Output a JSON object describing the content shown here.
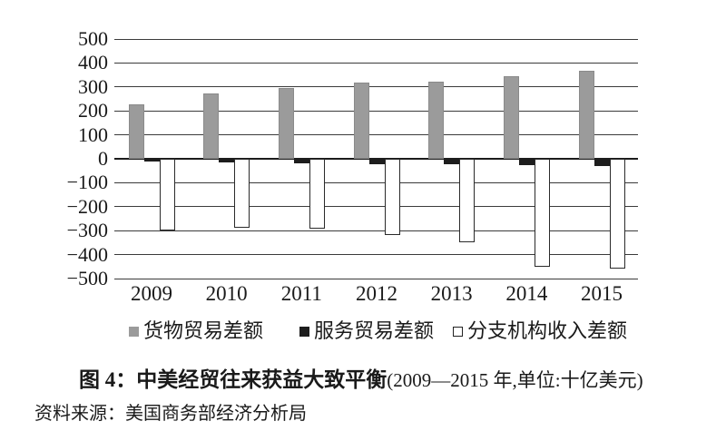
{
  "figure": {
    "caption": {
      "prefix": "图 4：中美经贸往来获益大致平衡",
      "paren": "(2009—2015 年,单位:十亿美元)"
    },
    "source": "资料来源：美国商务部经济分析局"
  },
  "chart_data": {
    "type": "bar",
    "title": "图 4：中美经贸往来获益大致平衡",
    "subtitle": "(2009—2015 年,单位:十亿美元)",
    "unit": "十亿美元",
    "categories": [
      "2009",
      "2010",
      "2011",
      "2012",
      "2013",
      "2014",
      "2015"
    ],
    "series": [
      {
        "key": "goods",
        "name": "货物贸易差额",
        "color": "#9b9b9b",
        "values": [
          228,
          273,
          296,
          317,
          322,
          344,
          367
        ]
      },
      {
        "key": "services",
        "name": "服务贸易差额",
        "color": "#1d1d1d",
        "values": [
          -10,
          -15,
          -19,
          -21,
          -24,
          -27,
          -31
        ]
      },
      {
        "key": "branch-income",
        "name": "分支机构收入差额",
        "color": "#ffffff",
        "values": [
          -300,
          -288,
          -292,
          -318,
          -350,
          -450,
          -458
        ]
      }
    ],
    "ylim": [
      -500,
      500
    ],
    "ytick_step": 100,
    "yticks": [
      500,
      400,
      300,
      200,
      100,
      0,
      -100,
      -200,
      -300,
      -400,
      -500
    ],
    "grid": true,
    "legend_position": "bottom",
    "source_note": "资料来源：美国商务部经济分析局"
  }
}
